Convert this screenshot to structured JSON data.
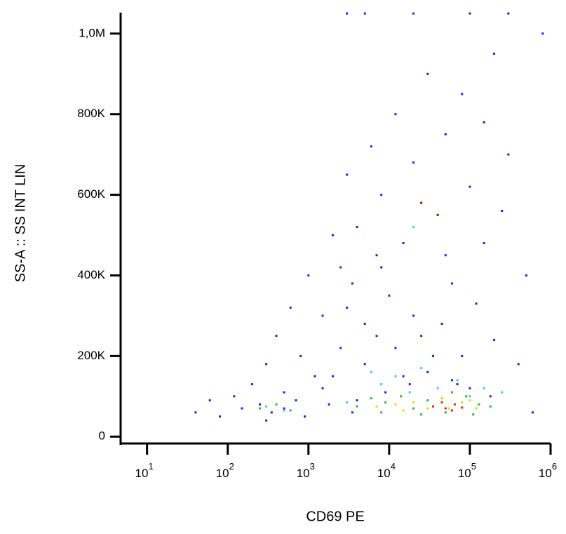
{
  "chart_data": {
    "type": "scatter",
    "x_label": "CD69 PE",
    "y_label": "SS-A :: SS INT LIN",
    "xscale": "log",
    "xlim": [
      5,
      1000000
    ],
    "ylim": [
      -17000,
      1052000
    ],
    "xticks": [
      {
        "value": 10,
        "label": "10",
        "exponent": "1"
      },
      {
        "value": 100,
        "label": "10",
        "exponent": "2"
      },
      {
        "value": 1000,
        "label": "10",
        "exponent": "3"
      },
      {
        "value": 10000,
        "label": "10",
        "exponent": "4"
      },
      {
        "value": 100000,
        "label": "10",
        "exponent": "5"
      },
      {
        "value": 1000000,
        "label": "10",
        "exponent": "6"
      }
    ],
    "yticks": [
      0,
      {
        "value": 200000,
        "label": "200K"
      },
      {
        "value": 400000,
        "label": "400K"
      },
      {
        "value": 600000,
        "label": "600K"
      },
      {
        "value": 800000,
        "label": "800K"
      },
      {
        "value": 1000000,
        "label": "1,0M"
      }
    ],
    "series": [
      {
        "color": "#1a1aff",
        "x": [
          40,
          60,
          80,
          120,
          150,
          200,
          250,
          300,
          350,
          400,
          500,
          600,
          700,
          800,
          1000,
          1200,
          1500,
          2000,
          2500,
          3000,
          3500,
          4000,
          5000,
          6000,
          7000,
          8000,
          10000,
          12000,
          15000,
          20000,
          25000,
          30000,
          40000,
          50000,
          60000,
          80000,
          100000,
          150000,
          200000,
          300000,
          500000,
          800000,
          2000,
          3000,
          5000,
          8000,
          12000,
          20000,
          30000,
          50000,
          80000,
          120000,
          200000,
          400000,
          1500,
          2500,
          4000,
          7000,
          15000,
          25000,
          45000,
          70000,
          150000,
          250000,
          600000,
          300,
          500,
          900,
          1800,
          3500,
          9000,
          18000,
          35000,
          60000,
          100000,
          180000,
          3000,
          5000,
          20000,
          100000,
          300000
        ],
        "values": [
          60000,
          90000,
          50000,
          100000,
          70000,
          130000,
          80000,
          180000,
          60000,
          250000,
          110000,
          320000,
          90000,
          200000,
          400000,
          150000,
          300000,
          500000,
          220000,
          650000,
          380000,
          520000,
          280000,
          720000,
          450000,
          600000,
          350000,
          800000,
          480000,
          680000,
          250000,
          900000,
          550000,
          750000,
          380000,
          850000,
          620000,
          480000,
          950000,
          700000,
          400000,
          1000000,
          150000,
          320000,
          180000,
          420000,
          220000,
          300000,
          160000,
          450000,
          200000,
          330000,
          240000,
          180000,
          120000,
          420000,
          90000,
          250000,
          150000,
          580000,
          280000,
          130000,
          780000,
          560000,
          60000,
          40000,
          70000,
          50000,
          80000,
          60000,
          110000,
          130000,
          200000,
          140000,
          120000,
          100000,
          1050000,
          1050000,
          1050000,
          1050000,
          1050000
        ]
      },
      {
        "color": "#33ccee",
        "x": [
          300,
          500,
          3000,
          8000,
          12000,
          18000,
          25000,
          40000,
          70000,
          100000,
          150000,
          20000,
          6000,
          250000
        ],
        "values": [
          75000,
          65000,
          85000,
          130000,
          150000,
          110000,
          170000,
          120000,
          140000,
          100000,
          120000,
          520000,
          160000,
          110000
        ]
      },
      {
        "color": "#22bb33",
        "x": [
          250,
          400,
          600,
          4000,
          6000,
          9000,
          14000,
          20000,
          30000,
          45000,
          60000,
          90000,
          130000,
          180000,
          8000,
          25000,
          50000,
          110000
        ],
        "values": [
          70000,
          80000,
          65000,
          75000,
          95000,
          85000,
          100000,
          70000,
          90000,
          95000,
          110000,
          100000,
          80000,
          75000,
          60000,
          55000,
          60000,
          55000
        ]
      },
      {
        "color": "#dddd00",
        "x": [
          7000,
          12000,
          20000,
          30000,
          45000,
          80000,
          120000,
          15000,
          55000,
          100000
        ],
        "values": [
          75000,
          80000,
          85000,
          70000,
          95000,
          85000,
          70000,
          65000,
          70000,
          90000
        ]
      },
      {
        "color": "#ee2200",
        "x": [
          35000,
          50000,
          65000,
          80000,
          45000,
          60000
        ],
        "values": [
          75000,
          70000,
          80000,
          72000,
          85000,
          65000
        ]
      }
    ]
  }
}
